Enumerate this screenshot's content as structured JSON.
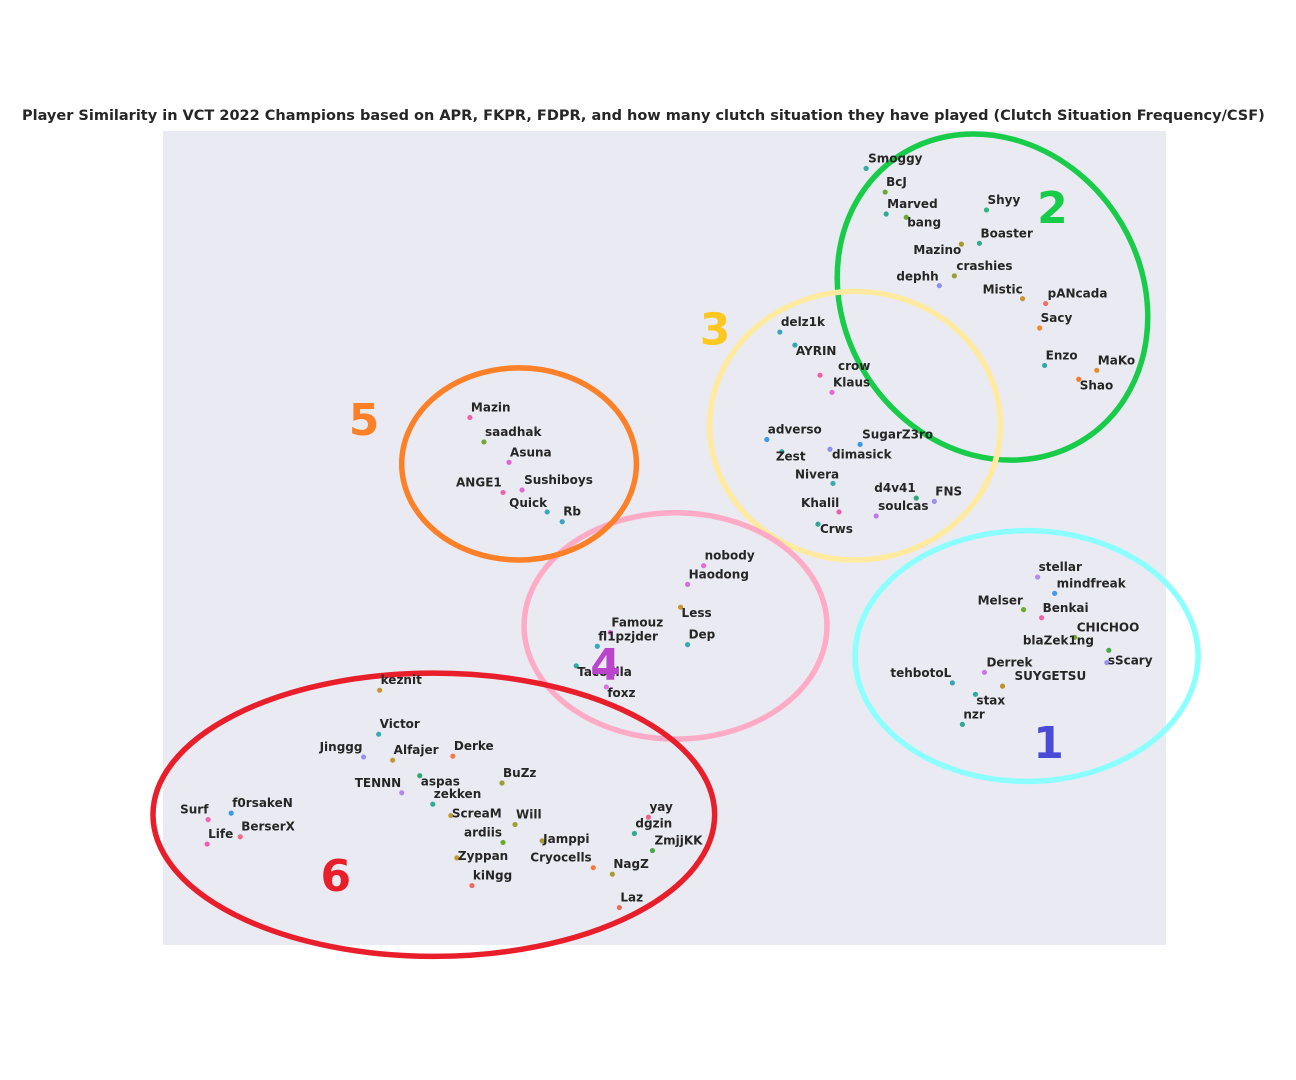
{
  "chart_data": {
    "type": "scatter",
    "title": "Player Similarity in VCT 2022 Champions based on APR, FKPR, FDPR, and how many clutch situation they have played (Clutch Situation Frequency/CSF)",
    "xlabel": "",
    "ylabel": "",
    "xlim": [
      0,
      100
    ],
    "ylim": [
      0,
      100
    ],
    "grid": false,
    "background": "#eaeaf2",
    "clusters": [
      {
        "label": "1",
        "color": "#8cffff",
        "label_color": "#4a4ad8",
        "center": [
          86.1,
          35.5
        ],
        "radii": [
          17.1,
          15.4
        ],
        "rotation": 0
      },
      {
        "label": "2",
        "color": "#18cc4a",
        "label_color": "#18cc4a",
        "center": [
          82.7,
          79.6
        ],
        "radii": [
          14.8,
          20.8
        ],
        "rotation": -34
      },
      {
        "label": "3",
        "color": "#ffeaa0",
        "label_color": "#ffc820",
        "center": [
          69.0,
          63.8
        ],
        "radii": [
          14.5,
          16.5
        ],
        "rotation": 0
      },
      {
        "label": "4",
        "color": "#ffaac6",
        "label_color": "#bb44cc",
        "center": [
          51.1,
          39.2
        ],
        "radii": [
          15.1,
          13.9
        ],
        "rotation": 0
      },
      {
        "label": "5",
        "color": "#fc8028",
        "label_color": "#fc8028",
        "center": [
          35.5,
          59.1
        ],
        "radii": [
          11.7,
          11.8
        ],
        "rotation": 0
      },
      {
        "label": "6",
        "color": "#e81e2a",
        "label_color": "#e81e2a",
        "center": [
          27.0,
          16.0
        ],
        "radii": [
          28.0,
          17.4
        ],
        "rotation": 0
      }
    ],
    "points": [
      {
        "name": "Smoggy",
        "x": 70.1,
        "y": 95.4,
        "color": "#31a8a0"
      },
      {
        "name": "BcJ",
        "x": 72.0,
        "y": 92.5,
        "color": "#69aa30"
      },
      {
        "name": "Marved",
        "x": 72.1,
        "y": 89.8,
        "color": "#30aa90"
      },
      {
        "name": "bang",
        "x": 74.1,
        "y": 89.4,
        "color": "#6aaa2a"
      },
      {
        "name": "Shyy",
        "x": 82.1,
        "y": 90.3,
        "color": "#2fb57a"
      },
      {
        "name": "Boaster",
        "x": 81.4,
        "y": 86.2,
        "color": "#34a88a"
      },
      {
        "name": "Mazino",
        "x": 79.6,
        "y": 86.1,
        "color": "#a89a2c"
      },
      {
        "name": "crashies",
        "x": 78.9,
        "y": 82.2,
        "color": "#9aa034"
      },
      {
        "name": "dephh",
        "x": 77.4,
        "y": 81.0,
        "color": "#8f8ff2"
      },
      {
        "name": "Mistic",
        "x": 85.7,
        "y": 79.4,
        "color": "#c99432"
      },
      {
        "name": "pANcada",
        "x": 88.0,
        "y": 78.8,
        "color": "#f57060"
      },
      {
        "name": "Sacy",
        "x": 87.4,
        "y": 75.8,
        "color": "#f08a2a"
      },
      {
        "name": "Enzo",
        "x": 87.9,
        "y": 71.2,
        "color": "#2fa9a2"
      },
      {
        "name": "MaKo",
        "x": 93.1,
        "y": 70.6,
        "color": "#ea8a2c"
      },
      {
        "name": "Shao",
        "x": 91.3,
        "y": 69.5,
        "color": "#f47a28"
      },
      {
        "name": "delz1k",
        "x": 61.5,
        "y": 75.3,
        "color": "#38a4bc"
      },
      {
        "name": "AYRIN",
        "x": 63.0,
        "y": 73.7,
        "color": "#30a6b0"
      },
      {
        "name": "crow",
        "x": 65.5,
        "y": 70.0,
        "color": "#f060a0"
      },
      {
        "name": "Klaus",
        "x": 66.7,
        "y": 67.9,
        "color": "#e865d6"
      },
      {
        "name": "adverso",
        "x": 60.2,
        "y": 62.1,
        "color": "#3a9ae8"
      },
      {
        "name": "SugarZ3ro",
        "x": 69.5,
        "y": 61.5,
        "color": "#3a9ae8"
      },
      {
        "name": "dimasick",
        "x": 66.5,
        "y": 60.9,
        "color": "#8f8ff2"
      },
      {
        "name": "Zest",
        "x": 61.7,
        "y": 60.6,
        "color": "#33a8a4"
      },
      {
        "name": "Nivera",
        "x": 66.8,
        "y": 56.7,
        "color": "#37aab4"
      },
      {
        "name": "d4v41",
        "x": 75.1,
        "y": 54.9,
        "color": "#2fa878"
      },
      {
        "name": "FNS",
        "x": 76.9,
        "y": 54.5,
        "color": "#a08ef0"
      },
      {
        "name": "Khalil",
        "x": 67.4,
        "y": 53.2,
        "color": "#ec5ea8"
      },
      {
        "name": "soulcas",
        "x": 71.1,
        "y": 52.7,
        "color": "#c078ec"
      },
      {
        "name": "Crws",
        "x": 65.3,
        "y": 51.7,
        "color": "#2fa89a"
      },
      {
        "name": "nobody",
        "x": 53.9,
        "y": 46.6,
        "color": "#e468d8"
      },
      {
        "name": "Haodong",
        "x": 52.3,
        "y": 44.3,
        "color": "#d070e8"
      },
      {
        "name": "Less",
        "x": 51.6,
        "y": 41.5,
        "color": "#c99432"
      },
      {
        "name": "Famouz",
        "x": 44.6,
        "y": 38.4,
        "color": "#e468d8"
      },
      {
        "name": "fl1pzjder",
        "x": 43.3,
        "y": 36.7,
        "color": "#37a8be"
      },
      {
        "name": "Dep",
        "x": 52.3,
        "y": 36.9,
        "color": "#37aaae"
      },
      {
        "name": "Tacolilla",
        "x": 41.2,
        "y": 34.3,
        "color": "#30aa9a"
      },
      {
        "name": "foxz",
        "x": 44.2,
        "y": 31.7,
        "color": "#dc72e2"
      },
      {
        "name": "Mazin",
        "x": 30.6,
        "y": 64.8,
        "color": "#ee64a6"
      },
      {
        "name": "saadhak",
        "x": 32.0,
        "y": 61.8,
        "color": "#6ca832"
      },
      {
        "name": "Asuna",
        "x": 34.5,
        "y": 59.3,
        "color": "#e063d2"
      },
      {
        "name": "ANGE1",
        "x": 33.9,
        "y": 55.6,
        "color": "#ee62a4"
      },
      {
        "name": "Sushiboys",
        "x": 35.8,
        "y": 55.9,
        "color": "#e268d4"
      },
      {
        "name": "Quick",
        "x": 38.3,
        "y": 53.2,
        "color": "#37a8c4"
      },
      {
        "name": "Rb",
        "x": 39.8,
        "y": 52.0,
        "color": "#38a4c0"
      },
      {
        "name": "stellar",
        "x": 87.2,
        "y": 45.2,
        "color": "#b48aee"
      },
      {
        "name": "mindfreak",
        "x": 88.9,
        "y": 43.2,
        "color": "#4a98ec"
      },
      {
        "name": "Melser",
        "x": 85.8,
        "y": 41.2,
        "color": "#6aaa2c"
      },
      {
        "name": "Benkai",
        "x": 87.6,
        "y": 40.2,
        "color": "#ee66aa"
      },
      {
        "name": "CHICHOO",
        "x": 90.9,
        "y": 37.8,
        "color": "#7aa82e"
      },
      {
        "name": "blaZek1ng",
        "x": 94.3,
        "y": 36.2,
        "color": "#4aa848"
      },
      {
        "name": "sScary",
        "x": 94.1,
        "y": 34.7,
        "color": "#9a90f2"
      },
      {
        "name": "Derrek",
        "x": 81.9,
        "y": 33.5,
        "color": "#ce72ec"
      },
      {
        "name": "tehbotoL",
        "x": 78.7,
        "y": 32.2,
        "color": "#36a6b4"
      },
      {
        "name": "SUYGETSU",
        "x": 83.7,
        "y": 31.8,
        "color": "#c0902e"
      },
      {
        "name": "stax",
        "x": 81.0,
        "y": 30.8,
        "color": "#30aa9a"
      },
      {
        "name": "nzr",
        "x": 79.7,
        "y": 27.1,
        "color": "#2fa89a"
      },
      {
        "name": "keznit",
        "x": 21.6,
        "y": 31.3,
        "color": "#c99432"
      },
      {
        "name": "Victor",
        "x": 21.5,
        "y": 25.9,
        "color": "#38aab0"
      },
      {
        "name": "Jinggg",
        "x": 20.0,
        "y": 23.1,
        "color": "#9a90f2"
      },
      {
        "name": "Alfajer",
        "x": 22.9,
        "y": 22.7,
        "color": "#c39a30"
      },
      {
        "name": "Derke",
        "x": 28.9,
        "y": 23.2,
        "color": "#f47a4a"
      },
      {
        "name": "aspas",
        "x": 25.6,
        "y": 20.8,
        "color": "#2fa878"
      },
      {
        "name": "BuZz",
        "x": 33.8,
        "y": 19.9,
        "color": "#9aa034"
      },
      {
        "name": "TENNN",
        "x": 23.8,
        "y": 18.7,
        "color": "#b488ee"
      },
      {
        "name": "zekken",
        "x": 26.9,
        "y": 17.3,
        "color": "#30aa90"
      },
      {
        "name": "ScreaM",
        "x": 28.7,
        "y": 15.9,
        "color": "#c39a30"
      },
      {
        "name": "Will",
        "x": 35.1,
        "y": 14.8,
        "color": "#9aa034"
      },
      {
        "name": "Surf",
        "x": 4.5,
        "y": 15.4,
        "color": "#ee66aa"
      },
      {
        "name": "f0rsakeN",
        "x": 6.8,
        "y": 16.2,
        "color": "#3a9ae8"
      },
      {
        "name": "BerserX",
        "x": 7.7,
        "y": 13.3,
        "color": "#f06a8a"
      },
      {
        "name": "Life",
        "x": 4.4,
        "y": 12.4,
        "color": "#ee5eb0"
      },
      {
        "name": "ardiis",
        "x": 33.9,
        "y": 12.6,
        "color": "#6aaa2a"
      },
      {
        "name": "Jamppi",
        "x": 37.8,
        "y": 12.8,
        "color": "#a89a2c"
      },
      {
        "name": "yay",
        "x": 48.4,
        "y": 15.7,
        "color": "#f0608a"
      },
      {
        "name": "dgzin",
        "x": 47.0,
        "y": 13.7,
        "color": "#30aa90"
      },
      {
        "name": "ZmjjKK",
        "x": 48.8,
        "y": 11.6,
        "color": "#4aa848"
      },
      {
        "name": "Zyppan",
        "x": 29.3,
        "y": 10.7,
        "color": "#c39a30"
      },
      {
        "name": "Cryocells",
        "x": 42.9,
        "y": 9.5,
        "color": "#f47a3a"
      },
      {
        "name": "NagZ",
        "x": 44.8,
        "y": 8.7,
        "color": "#a89a2c"
      },
      {
        "name": "kiNgg",
        "x": 30.8,
        "y": 7.3,
        "color": "#f06a60"
      },
      {
        "name": "Laz",
        "x": 45.5,
        "y": 4.6,
        "color": "#f06a60"
      }
    ]
  }
}
